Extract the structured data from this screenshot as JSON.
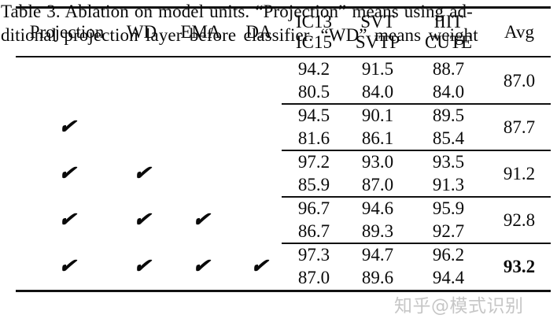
{
  "table": {
    "check_glyph": "✔",
    "columns": [
      {
        "key": "projection",
        "label": "Projection"
      },
      {
        "key": "wd",
        "label": "WD"
      },
      {
        "key": "ema",
        "label": "EMA"
      },
      {
        "key": "da",
        "label": "DA"
      },
      {
        "key": "ic",
        "label_top": "IC13",
        "label_bottom": "IC15"
      },
      {
        "key": "svt",
        "label_top": "SVT",
        "label_bottom": "SVTP"
      },
      {
        "key": "iiit",
        "label_top": "IIIT",
        "label_bottom": "CUTE"
      },
      {
        "key": "avg",
        "label": "Avg"
      }
    ],
    "rows": [
      {
        "checks": [
          false,
          false,
          false,
          false
        ],
        "ic": [
          "94.2",
          "80.5"
        ],
        "svt": [
          "91.5",
          "84.0"
        ],
        "iiit": [
          "88.7",
          "84.0"
        ],
        "avg": "87.0",
        "avg_bold": false
      },
      {
        "checks": [
          true,
          false,
          false,
          false
        ],
        "ic": [
          "94.5",
          "81.6"
        ],
        "svt": [
          "90.1",
          "86.1"
        ],
        "iiit": [
          "89.5",
          "85.4"
        ],
        "avg": "87.7",
        "avg_bold": false
      },
      {
        "checks": [
          true,
          true,
          false,
          false
        ],
        "ic": [
          "97.2",
          "85.9"
        ],
        "svt": [
          "93.0",
          "87.0"
        ],
        "iiit": [
          "93.5",
          "91.3"
        ],
        "avg": "91.2",
        "avg_bold": false
      },
      {
        "checks": [
          true,
          true,
          true,
          false
        ],
        "ic": [
          "96.7",
          "86.7"
        ],
        "svt": [
          "94.6",
          "89.3"
        ],
        "iiit": [
          "95.9",
          "92.7"
        ],
        "avg": "92.8",
        "avg_bold": false
      },
      {
        "checks": [
          true,
          true,
          true,
          true
        ],
        "ic": [
          "97.3",
          "87.0"
        ],
        "svt": [
          "94.7",
          "89.6"
        ],
        "iiit": [
          "96.2",
          "94.4"
        ],
        "avg": "93.2",
        "avg_bold": true
      }
    ]
  },
  "caption": {
    "line1": "Table 3.  Ablation on model units.  “Projection” means using ad-",
    "line2": "ditional projection layer before classifier. “WD” means weight"
  },
  "watermark": {
    "text": "知乎@模式识别"
  }
}
